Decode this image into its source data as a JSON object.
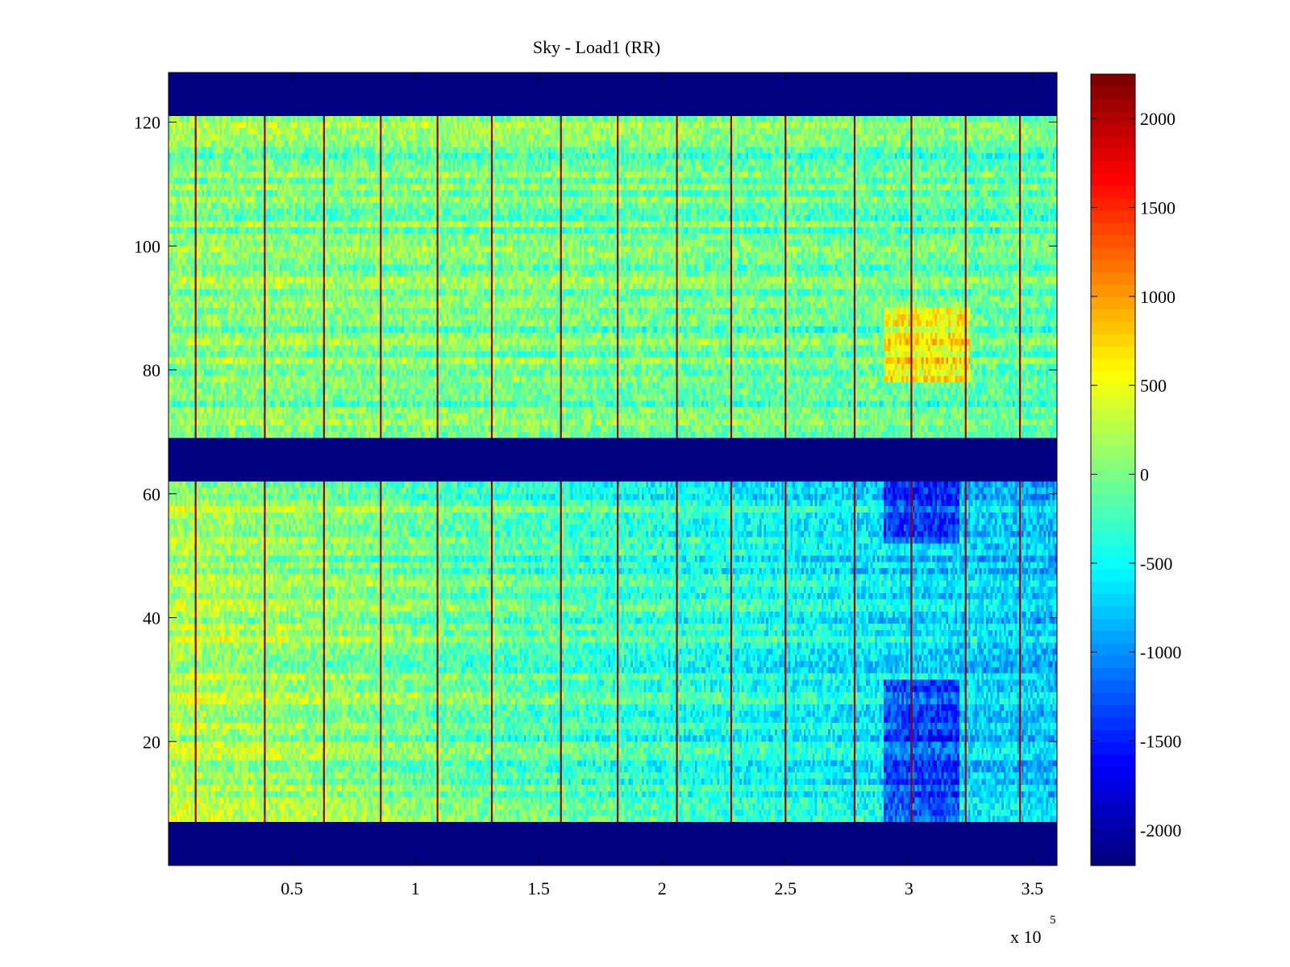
{
  "chart_data": {
    "type": "heatmap",
    "title": "Sky - Load1 (RR)",
    "xlabel": "",
    "ylabel": "",
    "xlim": [
      0,
      360000
    ],
    "ylim": [
      0,
      128
    ],
    "x_ticks": [
      50000,
      100000,
      150000,
      200000,
      250000,
      300000,
      350000
    ],
    "x_tick_labels": [
      "0.5",
      "1",
      "1.5",
      "2",
      "2.5",
      "3",
      "3.5"
    ],
    "x_exponent_label": "x 10",
    "x_exponent_power": "5",
    "y_ticks": [
      20,
      40,
      60,
      80,
      100,
      120
    ],
    "y_tick_labels": [
      "20",
      "40",
      "60",
      "80",
      "100",
      "120"
    ],
    "colormap": "jet",
    "clim": [
      -2200,
      2250
    ],
    "colorbar_ticks": [
      2000,
      1500,
      1000,
      500,
      0,
      -500,
      -1000,
      -1500,
      -2000
    ],
    "colorbar_tick_labels": [
      "2000",
      "1500",
      "1000",
      "500",
      "0",
      "-500",
      "-1000",
      "-1500",
      "-2000"
    ],
    "masked_row_bands": [
      {
        "from": 0,
        "to": 7,
        "value": -2200
      },
      {
        "from": 62,
        "to": 69,
        "value": -2200
      },
      {
        "from": 121,
        "to": 128,
        "value": -2200
      }
    ],
    "row_regions": [
      {
        "name": "lower",
        "from": 7,
        "to": 62,
        "typical_value_left": 250,
        "typical_value_right": -800
      },
      {
        "name": "upper",
        "from": 69,
        "to": 121,
        "typical_value_left": 50,
        "typical_value_right": -150
      }
    ],
    "vertical_spike_x": [
      11000,
      39000,
      63000,
      86000,
      109000,
      131000,
      159000,
      182000,
      206000,
      228000,
      250000,
      278000,
      301000,
      323000,
      345000
    ],
    "spike_value": 2100,
    "grid": false,
    "legend": "none"
  }
}
